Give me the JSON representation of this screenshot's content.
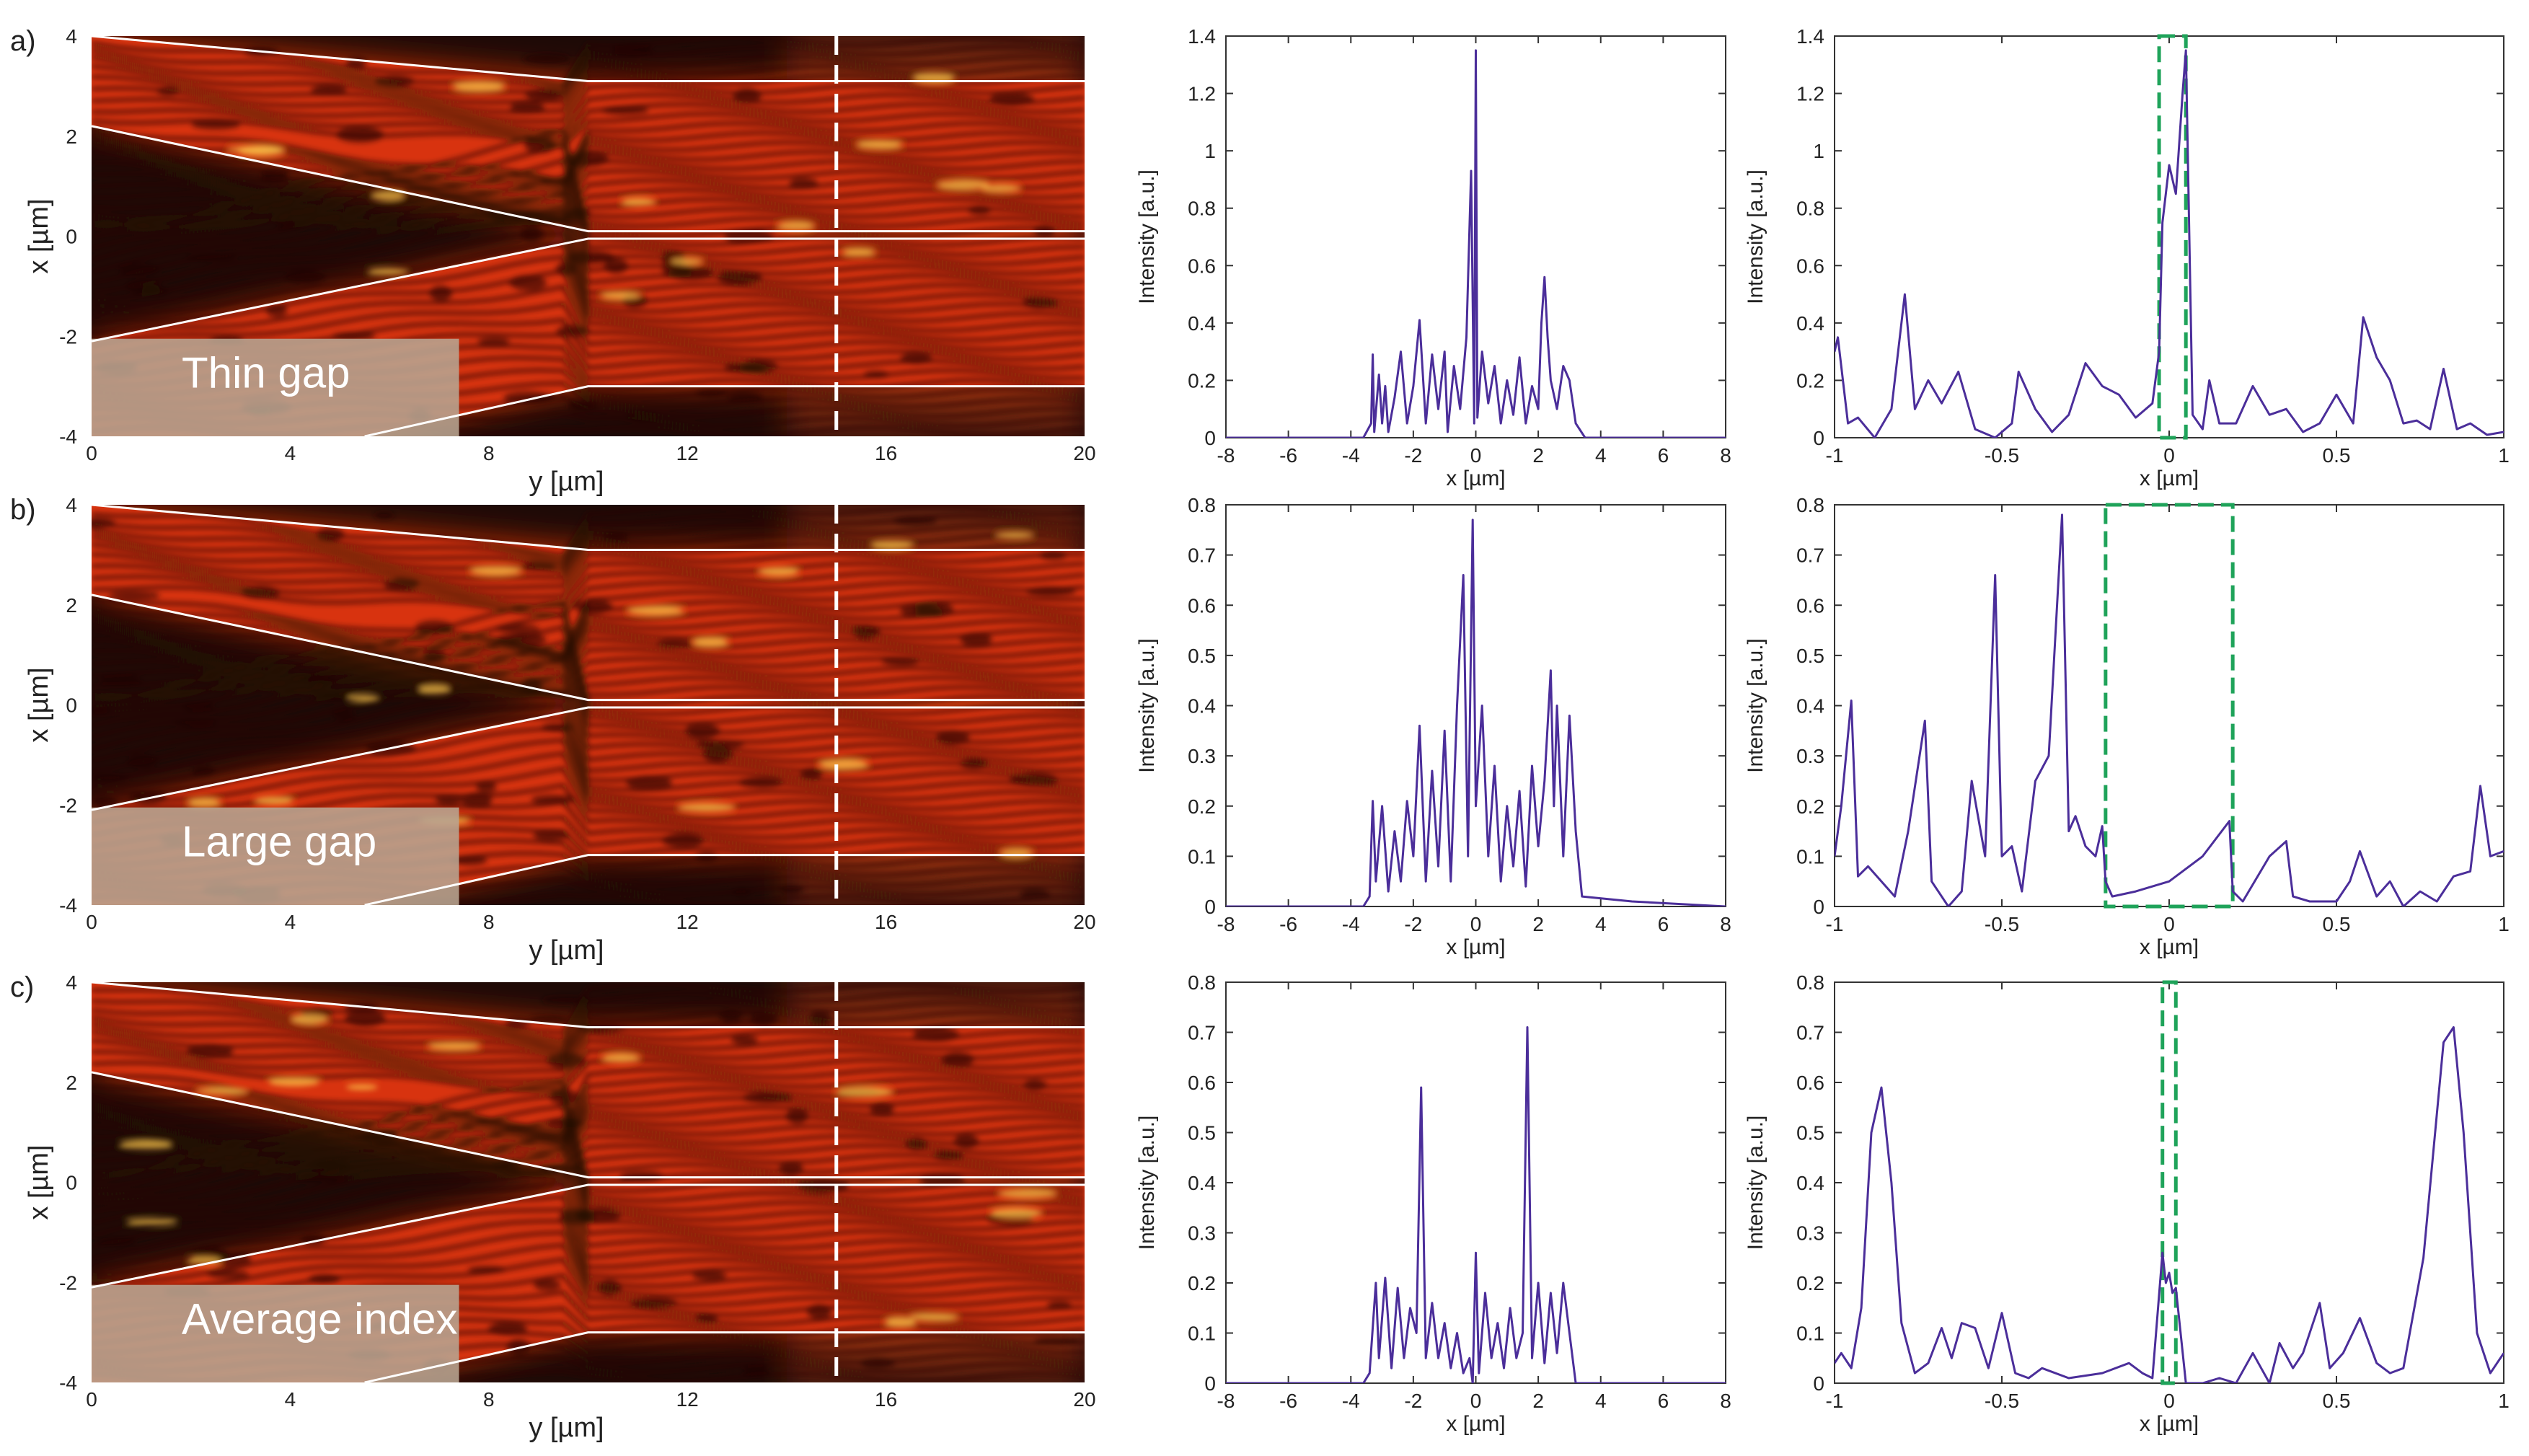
{
  "figure": {
    "rows": [
      {
        "panel_letter": "a)",
        "map_label": "Thin gap",
        "dash_color": "#1fa35a",
        "zoom_window": [
          -0.03,
          0.05
        ]
      },
      {
        "panel_letter": "b)",
        "map_label": "Large gap",
        "dash_color": "#1fa35a",
        "zoom_window": [
          -0.19,
          0.19
        ]
      },
      {
        "panel_letter": "c)",
        "map_label": "Average index",
        "dash_color": "#1fa35a",
        "zoom_window": [
          -0.02,
          0.02
        ]
      }
    ]
  },
  "field_map": {
    "xlabel": "y [µm]",
    "ylabel": "x [µm]",
    "xticks": [
      "0",
      "4",
      "8",
      "12",
      "16",
      "20"
    ],
    "yticks": [
      "4",
      "2",
      "0",
      "-2",
      "-4"
    ],
    "xlim": [
      0,
      20
    ],
    "ylim": [
      -4,
      4
    ],
    "cut_position_y": 15,
    "colors": {
      "background": "#1e0a06",
      "field": "#d8330f",
      "hot": "#ffc84a",
      "gap_region": "#b8a592"
    }
  },
  "chart_data": [
    {
      "type": "line",
      "panel": "a) middle",
      "title": "",
      "xlabel": "x [µm]",
      "ylabel": "Intensity [a.u.]",
      "xlim": [
        -8,
        8
      ],
      "ylim": [
        0,
        1.4
      ],
      "xticks": [
        "-8",
        "-6",
        "-4",
        "-2",
        "0",
        "2",
        "4",
        "6",
        "8"
      ],
      "yticks": [
        "0",
        "0.2",
        "0.4",
        "0.6",
        "0.8",
        "1",
        "1.2",
        "1.4"
      ],
      "line_color": "#4b2e9a",
      "x": [
        -8,
        -3.6,
        -3.35,
        -3.3,
        -3.25,
        -3.1,
        -3.0,
        -2.9,
        -2.8,
        -2.6,
        -2.4,
        -2.2,
        -2.0,
        -1.8,
        -1.6,
        -1.4,
        -1.2,
        -1.0,
        -0.9,
        -0.7,
        -0.5,
        -0.3,
        -0.15,
        -0.05,
        0.0,
        0.05,
        0.2,
        0.4,
        0.6,
        0.8,
        1.0,
        1.2,
        1.4,
        1.6,
        1.8,
        2.0,
        2.1,
        2.2,
        2.3,
        2.4,
        2.6,
        2.8,
        3.0,
        3.2,
        3.5,
        8
      ],
      "y": [
        0,
        0.0,
        0.05,
        0.29,
        0.02,
        0.22,
        0.05,
        0.18,
        0.02,
        0.14,
        0.3,
        0.05,
        0.18,
        0.41,
        0.05,
        0.29,
        0.1,
        0.3,
        0.02,
        0.25,
        0.1,
        0.35,
        0.93,
        0.05,
        1.35,
        0.07,
        0.3,
        0.12,
        0.25,
        0.05,
        0.2,
        0.08,
        0.28,
        0.05,
        0.18,
        0.1,
        0.4,
        0.56,
        0.35,
        0.2,
        0.1,
        0.25,
        0.2,
        0.05,
        0.0,
        0
      ]
    },
    {
      "type": "line",
      "panel": "a) right",
      "title": "",
      "xlabel": "x [µm]",
      "ylabel": "Intensity [a.u.]",
      "xlim": [
        -1,
        1
      ],
      "ylim": [
        0,
        1.4
      ],
      "xticks": [
        "-1",
        "-0.5",
        "0",
        "0.5",
        "1"
      ],
      "yticks": [
        "0",
        "0.2",
        "0.4",
        "0.6",
        "0.8",
        "1",
        "1.2",
        "1.4"
      ],
      "line_color": "#4b2e9a",
      "x": [
        -1.0,
        -0.99,
        -0.96,
        -0.93,
        -0.88,
        -0.83,
        -0.79,
        -0.76,
        -0.72,
        -0.68,
        -0.63,
        -0.58,
        -0.52,
        -0.47,
        -0.45,
        -0.4,
        -0.35,
        -0.3,
        -0.25,
        -0.2,
        -0.15,
        -0.1,
        -0.05,
        -0.03,
        -0.02,
        0.0,
        0.02,
        0.04,
        0.05,
        0.07,
        0.1,
        0.12,
        0.15,
        0.2,
        0.25,
        0.3,
        0.35,
        0.4,
        0.45,
        0.5,
        0.55,
        0.58,
        0.62,
        0.66,
        0.7,
        0.74,
        0.78,
        0.82,
        0.86,
        0.9,
        0.95,
        1.0
      ],
      "y": [
        0.3,
        0.35,
        0.05,
        0.07,
        0.0,
        0.1,
        0.5,
        0.1,
        0.2,
        0.12,
        0.23,
        0.03,
        0.0,
        0.05,
        0.23,
        0.1,
        0.02,
        0.08,
        0.26,
        0.18,
        0.15,
        0.07,
        0.12,
        0.3,
        0.75,
        0.95,
        0.85,
        1.2,
        1.35,
        0.08,
        0.03,
        0.2,
        0.05,
        0.05,
        0.18,
        0.08,
        0.1,
        0.02,
        0.05,
        0.15,
        0.05,
        0.42,
        0.28,
        0.2,
        0.05,
        0.06,
        0.03,
        0.24,
        0.03,
        0.05,
        0.01,
        0.02
      ]
    },
    {
      "type": "line",
      "panel": "b) middle",
      "title": "",
      "xlabel": "x [µm]",
      "ylabel": "Intensity [a.u.]",
      "xlim": [
        -8,
        8
      ],
      "ylim": [
        0,
        0.8
      ],
      "xticks": [
        "-8",
        "-6",
        "-4",
        "-2",
        "0",
        "2",
        "4",
        "6",
        "8"
      ],
      "yticks": [
        "0",
        "0.1",
        "0.2",
        "0.3",
        "0.4",
        "0.5",
        "0.6",
        "0.7",
        "0.8"
      ],
      "line_color": "#4b2e9a",
      "x": [
        -8,
        -3.6,
        -3.4,
        -3.3,
        -3.2,
        -3.0,
        -2.8,
        -2.6,
        -2.4,
        -2.2,
        -2.0,
        -1.8,
        -1.6,
        -1.4,
        -1.2,
        -1.0,
        -0.8,
        -0.6,
        -0.4,
        -0.25,
        -0.1,
        0.0,
        0.2,
        0.4,
        0.6,
        0.8,
        1.0,
        1.2,
        1.4,
        1.6,
        1.8,
        2.0,
        2.2,
        2.4,
        2.5,
        2.6,
        2.8,
        3.0,
        3.2,
        3.4,
        5,
        8
      ],
      "y": [
        0,
        0.0,
        0.02,
        0.21,
        0.05,
        0.2,
        0.03,
        0.15,
        0.05,
        0.21,
        0.1,
        0.36,
        0.05,
        0.27,
        0.08,
        0.35,
        0.05,
        0.4,
        0.66,
        0.1,
        0.77,
        0.2,
        0.4,
        0.1,
        0.28,
        0.05,
        0.2,
        0.08,
        0.23,
        0.04,
        0.28,
        0.12,
        0.25,
        0.47,
        0.2,
        0.4,
        0.1,
        0.38,
        0.15,
        0.02,
        0.01,
        0
      ]
    },
    {
      "type": "line",
      "panel": "b) right",
      "title": "",
      "xlabel": "x [µm]",
      "ylabel": "Intensity [a.u.]",
      "xlim": [
        -1,
        1
      ],
      "ylim": [
        0,
        0.8
      ],
      "xticks": [
        "-1",
        "-0.5",
        "0",
        "0.5",
        "1"
      ],
      "yticks": [
        "0",
        "0.1",
        "0.2",
        "0.3",
        "0.4",
        "0.5",
        "0.6",
        "0.7",
        "0.8"
      ],
      "line_color": "#4b2e9a",
      "x": [
        -1.0,
        -0.98,
        -0.95,
        -0.93,
        -0.9,
        -0.86,
        -0.82,
        -0.78,
        -0.73,
        -0.71,
        -0.66,
        -0.62,
        -0.59,
        -0.55,
        -0.52,
        -0.5,
        -0.47,
        -0.44,
        -0.4,
        -0.36,
        -0.32,
        -0.3,
        -0.28,
        -0.25,
        -0.22,
        -0.2,
        -0.19,
        -0.17,
        -0.1,
        0.0,
        0.1,
        0.18,
        0.19,
        0.22,
        0.3,
        0.35,
        0.37,
        0.42,
        0.5,
        0.54,
        0.57,
        0.62,
        0.66,
        0.7,
        0.75,
        0.8,
        0.85,
        0.9,
        0.93,
        0.96,
        1.0
      ],
      "y": [
        0.1,
        0.2,
        0.41,
        0.06,
        0.08,
        0.05,
        0.02,
        0.15,
        0.37,
        0.05,
        0.0,
        0.03,
        0.25,
        0.1,
        0.66,
        0.1,
        0.12,
        0.03,
        0.25,
        0.3,
        0.78,
        0.15,
        0.18,
        0.12,
        0.1,
        0.16,
        0.05,
        0.02,
        0.03,
        0.05,
        0.1,
        0.17,
        0.03,
        0.01,
        0.1,
        0.13,
        0.02,
        0.01,
        0.01,
        0.05,
        0.11,
        0.02,
        0.05,
        0.0,
        0.03,
        0.01,
        0.06,
        0.07,
        0.24,
        0.1,
        0.11
      ]
    },
    {
      "type": "line",
      "panel": "c) middle",
      "title": "",
      "xlabel": "x [µm]",
      "ylabel": "Intensity [a.u.]",
      "xlim": [
        -8,
        8
      ],
      "ylim": [
        0,
        0.8
      ],
      "xticks": [
        "-8",
        "-6",
        "-4",
        "-2",
        "0",
        "2",
        "4",
        "6",
        "8"
      ],
      "yticks": [
        "0",
        "0.1",
        "0.2",
        "0.3",
        "0.4",
        "0.5",
        "0.6",
        "0.7",
        "0.8"
      ],
      "line_color": "#4b2e9a",
      "x": [
        -8,
        -3.6,
        -3.4,
        -3.2,
        -3.1,
        -2.9,
        -2.7,
        -2.5,
        -2.3,
        -2.1,
        -1.9,
        -1.75,
        -1.6,
        -1.4,
        -1.2,
        -1.0,
        -0.8,
        -0.6,
        -0.4,
        -0.2,
        -0.1,
        0.0,
        0.1,
        0.3,
        0.5,
        0.7,
        0.9,
        1.1,
        1.3,
        1.5,
        1.65,
        1.8,
        2.0,
        2.2,
        2.4,
        2.6,
        2.8,
        3.0,
        3.2,
        3.5,
        8
      ],
      "y": [
        0,
        0.0,
        0.02,
        0.2,
        0.05,
        0.21,
        0.03,
        0.19,
        0.05,
        0.15,
        0.1,
        0.59,
        0.05,
        0.16,
        0.05,
        0.12,
        0.03,
        0.1,
        0.02,
        0.05,
        0.0,
        0.26,
        0.02,
        0.18,
        0.05,
        0.12,
        0.03,
        0.15,
        0.05,
        0.1,
        0.71,
        0.05,
        0.2,
        0.04,
        0.18,
        0.06,
        0.2,
        0.1,
        0.0,
        0.0,
        0
      ]
    },
    {
      "type": "line",
      "panel": "c) right",
      "title": "",
      "xlabel": "x [µm]",
      "ylabel": "Intensity [a.u.]",
      "xlim": [
        -1,
        1
      ],
      "ylim": [
        0,
        0.8
      ],
      "xticks": [
        "-1",
        "-0.5",
        "0",
        "0.5",
        "1"
      ],
      "yticks": [
        "0",
        "0.1",
        "0.2",
        "0.3",
        "0.4",
        "0.5",
        "0.6",
        "0.7",
        "0.8"
      ],
      "line_color": "#4b2e9a",
      "x": [
        -1.0,
        -0.98,
        -0.95,
        -0.92,
        -0.89,
        -0.86,
        -0.83,
        -0.8,
        -0.76,
        -0.72,
        -0.68,
        -0.65,
        -0.62,
        -0.58,
        -0.54,
        -0.5,
        -0.46,
        -0.42,
        -0.38,
        -0.3,
        -0.2,
        -0.12,
        -0.08,
        -0.05,
        -0.02,
        -0.01,
        0.0,
        0.01,
        0.02,
        0.05,
        0.1,
        0.15,
        0.2,
        0.25,
        0.3,
        0.33,
        0.37,
        0.4,
        0.45,
        0.48,
        0.52,
        0.57,
        0.62,
        0.66,
        0.7,
        0.76,
        0.82,
        0.85,
        0.88,
        0.92,
        0.96,
        1.0
      ],
      "y": [
        0.04,
        0.06,
        0.03,
        0.15,
        0.5,
        0.59,
        0.4,
        0.12,
        0.02,
        0.04,
        0.11,
        0.05,
        0.12,
        0.11,
        0.03,
        0.14,
        0.02,
        0.01,
        0.03,
        0.01,
        0.02,
        0.04,
        0.02,
        0.01,
        0.26,
        0.2,
        0.22,
        0.18,
        0.19,
        0.0,
        0.0,
        0.01,
        0.0,
        0.06,
        0.0,
        0.08,
        0.03,
        0.06,
        0.16,
        0.03,
        0.06,
        0.13,
        0.04,
        0.02,
        0.03,
        0.25,
        0.68,
        0.71,
        0.5,
        0.1,
        0.02,
        0.06
      ]
    }
  ]
}
